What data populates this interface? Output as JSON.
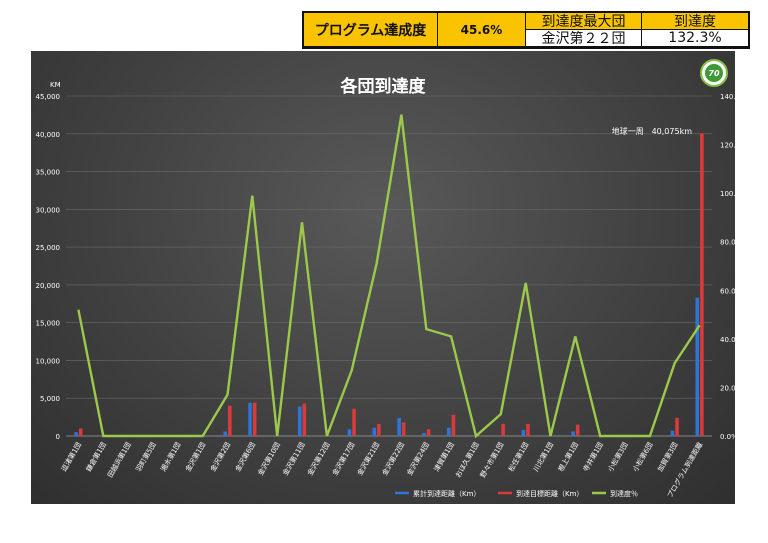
{
  "summary": {
    "label_achievement": "プログラム達成度",
    "value_achievement": "45.6%",
    "label_max_group": "到達度最大団",
    "value_max_group": "金沢第２２団",
    "label_reach": "到達度",
    "value_reach": "132.3%"
  },
  "colors": {
    "panel_bg": "#3f3f3f",
    "bar_cumulative": "#2e75d6",
    "bar_target": "#d93a3a",
    "line_reach": "#9cc94a",
    "summary_accent": "#f9c300"
  },
  "logo_icon": "70th-anniversary-emblem-icon",
  "chart_data": {
    "type": "bar",
    "title": "各団到達度",
    "ylabel": "KM",
    "y_left_ticks": [
      "0",
      "5,000",
      "10,000",
      "15,000",
      "20,000",
      "25,000",
      "30,000",
      "35,000",
      "40,000",
      "45,000"
    ],
    "y_right_ticks": [
      "0.0%",
      "20.0%",
      "40.0%",
      "60.0%",
      "80.0%",
      "100.0%",
      "120.0%",
      "140.0%"
    ],
    "ylim": [
      0,
      45000
    ],
    "y2lim": [
      0,
      140
    ],
    "categories": [
      "逗渚第1団",
      "鎌倉第1団",
      "田越浜第1団",
      "羽町第5団",
      "湘水第1団",
      "金沢第1団",
      "金沢第2団",
      "金沢第6団",
      "金沢第10団",
      "金沢第11団",
      "金沢第12団",
      "金沢第17団",
      "金沢第21団",
      "金沢第22団",
      "金沢第24団",
      "津賀第1団",
      "おほ久第1団",
      "野々市第1団",
      "松任第1団",
      "川北第1団",
      "根上第1団",
      "寺井第1団",
      "小松第3団",
      "小松第6団",
      "加賀第3団",
      "プログラム到達距離"
    ],
    "series": [
      {
        "name": "累計到達距離（Km）",
        "type": "bar",
        "values": [
          500,
          0,
          0,
          0,
          0,
          0,
          600,
          4400,
          0,
          3900,
          0,
          900,
          1100,
          2400,
          400,
          1100,
          0,
          0,
          800,
          0,
          600,
          0,
          0,
          0,
          700,
          18300
        ]
      },
      {
        "name": "到達目標距離（Km）",
        "type": "bar",
        "values": [
          1000,
          0,
          0,
          0,
          0,
          0,
          4000,
          4400,
          0,
          4300,
          0,
          3600,
          1600,
          1800,
          900,
          2800,
          0,
          1600,
          1600,
          0,
          1500,
          0,
          0,
          0,
          2400,
          40075
        ]
      },
      {
        "name": "到達度％",
        "type": "line",
        "axis": "right",
        "values": [
          52,
          0,
          0,
          0,
          0,
          0,
          17,
          99,
          0,
          88,
          0,
          27,
          71,
          132.3,
          44,
          41,
          0,
          9,
          63,
          0,
          41,
          0,
          0,
          0,
          30,
          45.6
        ]
      }
    ],
    "annotation": "地球一周　40,075km",
    "legend_position": "bottom",
    "grid": true
  }
}
